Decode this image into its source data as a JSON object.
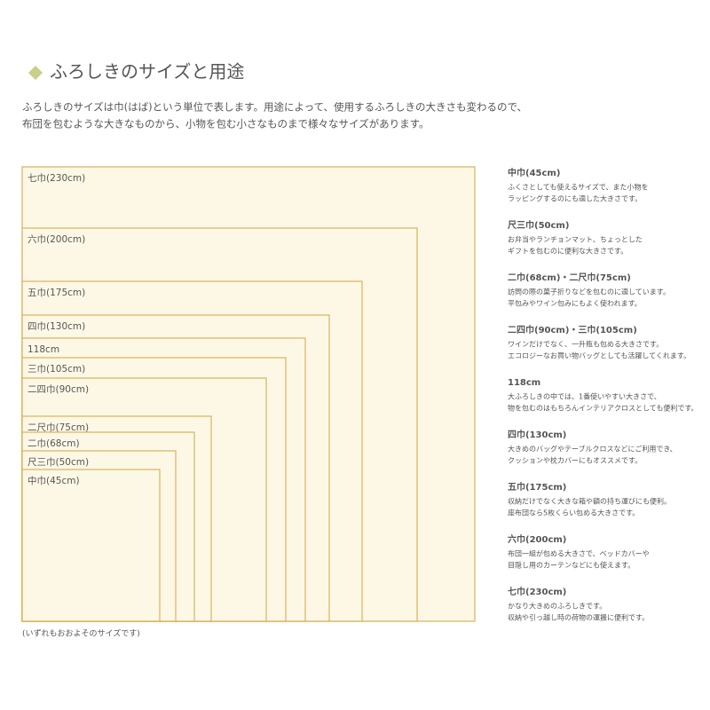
{
  "header": {
    "title": "ふろしきのサイズと用途",
    "intro": [
      "ふろしきのサイズは巾(はば)という単位で表します。用途によって、使用するふろしきの大きさも変わるので、",
      "布団を包むような大きなものから、小物を包む小さなものまで様々なサイズがあります。"
    ]
  },
  "boxes": [
    "七巾(230cm)",
    "六巾(200cm)",
    "五巾(175cm)",
    "四巾(130cm)",
    "118cm",
    "三巾(105cm)",
    "二四巾(90cm)",
    "二尺巾(75cm)",
    "二巾(68cm)",
    "尺三巾(50cm)",
    "中巾(45cm)"
  ],
  "note": "(いずれもおおよそのサイズです)",
  "descriptions": [
    {
      "title": "中巾(45cm)",
      "lines": [
        "ふくさとしても使えるサイズで、また小物を",
        "ラッピングするのにも適した大きさです。"
      ]
    },
    {
      "title": "尺三巾(50cm)",
      "lines": [
        "お弁当やランチョンマット、ちょっとした",
        "ギフトを包むのに便利な大きさです。"
      ]
    },
    {
      "title": "二巾(68cm)・二尺巾(75cm)",
      "lines": [
        "訪問の際の菓子折りなどを包むのに適しています。",
        "平包みやワイン包みにもよく使われます。"
      ]
    },
    {
      "title": "二四巾(90cm)・三巾(105cm)",
      "lines": [
        "ワインだけでなく、一升瓶も包める大きさです。",
        "エコロジーなお買い物バッグとしても活躍してくれます。"
      ]
    },
    {
      "title": "118cm",
      "lines": [
        "大ふろしきの中では、1番使いやすい大きさで、",
        "物を包むのはもちろんインテリアクロスとしても便利です。"
      ]
    },
    {
      "title": "四巾(130cm)",
      "lines": [
        "大きめのバッグやテーブルクロスなどにご利用でき、",
        "クッションや枕カバーにもオススメです。"
      ]
    },
    {
      "title": "五巾(175cm)",
      "lines": [
        "収納だけでなく大きな箱や額の持ち運びにも便利。",
        "座布団なら5枚くらい包める大きさです。"
      ]
    },
    {
      "title": "六巾(200cm)",
      "lines": [
        "布団一組が包める大きさで、ベッドカバーや",
        "目隠し用のカーテンなどにも使えます。"
      ]
    },
    {
      "title": "七巾(230cm)",
      "lines": [
        "かなり大きめのふろしきです。",
        "収納や引っ越し時の荷物の運搬に便利です。"
      ]
    }
  ]
}
